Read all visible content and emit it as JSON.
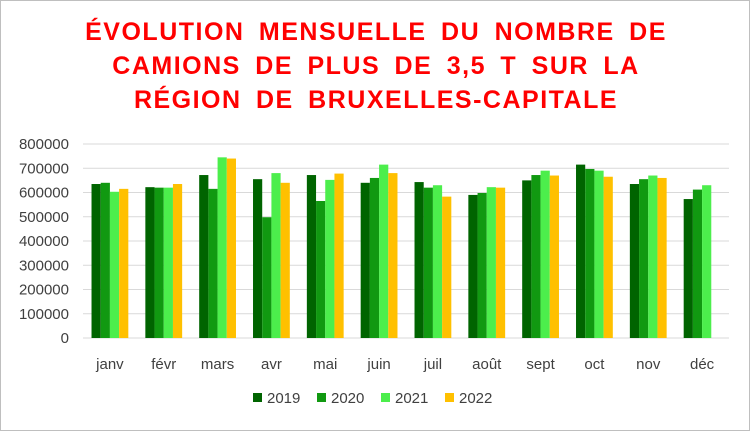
{
  "chart_data": {
    "type": "bar",
    "title": "ÉVOLUTION MENSUELLE DU NOMBRE DE\nCAMIONS DE PLUS DE 3,5 T SUR LA\nRÉGION DE BRUXELLES-CAPITALE",
    "xlabel": "",
    "ylabel": "",
    "ylim": [
      0,
      800000
    ],
    "yticks": [
      0,
      100000,
      200000,
      300000,
      400000,
      500000,
      600000,
      700000,
      800000
    ],
    "grid": true,
    "legend_position": "bottom",
    "categories": [
      "janv",
      "févr",
      "mars",
      "avr",
      "mai",
      "juin",
      "juil",
      "août",
      "sept",
      "oct",
      "nov",
      "déc"
    ],
    "series": [
      {
        "name": "2019",
        "color": "#006400",
        "values": [
          635000,
          622000,
          672000,
          655000,
          672000,
          640000,
          643000,
          590000,
          650000,
          715000,
          635000,
          573000
        ]
      },
      {
        "name": "2020",
        "color": "#119911",
        "values": [
          640000,
          620000,
          615000,
          498000,
          565000,
          660000,
          620000,
          598000,
          672000,
          697000,
          655000,
          612000
        ]
      },
      {
        "name": "2021",
        "color": "#4cee4c",
        "values": [
          603000,
          620000,
          745000,
          680000,
          652000,
          715000,
          630000,
          622000,
          690000,
          690000,
          670000,
          630000
        ]
      },
      {
        "name": "2022",
        "color": "#ffc000",
        "values": [
          615000,
          635000,
          740000,
          640000,
          678000,
          680000,
          583000,
          620000,
          670000,
          665000,
          660000,
          null
        ]
      }
    ]
  }
}
